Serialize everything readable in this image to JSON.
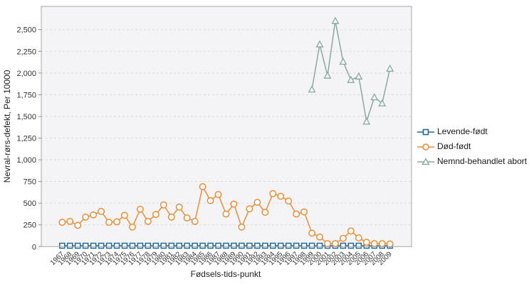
{
  "chart_data": {
    "type": "line",
    "title": "",
    "xlabel": "Fødsels-tids-punkt",
    "ylabel": "Nevral-rørs-defekt, Per 10000",
    "grid": "horizontal-dashed",
    "legend_position": "right",
    "ylim": [
      0,
      2767
    ],
    "y_ticks": [
      "0",
      "250",
      "500",
      "750",
      "1,000",
      "1,250",
      "1,500",
      "1,750",
      "2,000",
      "2,250",
      "2,500"
    ],
    "categories": [
      "1967",
      "1968",
      "1969",
      "1970",
      "1971",
      "1972",
      "1973",
      "1974",
      "1975",
      "1976",
      "1977",
      "1978",
      "1979",
      "1980",
      "1981",
      "1982",
      "1983",
      "1984",
      "1985",
      "1986",
      "1987",
      "1988",
      "1989",
      "1990",
      "1991",
      "1992",
      "1993",
      "1994",
      "1995",
      "1996",
      "1997",
      "1998",
      "1999",
      "2000",
      "2001",
      "2002",
      "2003",
      "2004",
      "2005",
      "2006",
      "2007",
      "2008",
      "2009"
    ],
    "series": [
      {
        "name": "Levende-født",
        "marker": "square",
        "color": "#1e68a0",
        "values": [
          10,
          10,
          10,
          10,
          10,
          10,
          10,
          10,
          10,
          10,
          10,
          10,
          10,
          10,
          10,
          10,
          10,
          10,
          10,
          10,
          10,
          10,
          10,
          10,
          10,
          10,
          10,
          10,
          10,
          10,
          10,
          10,
          10,
          10,
          10,
          10,
          10,
          10,
          10,
          10,
          10,
          10,
          10
        ]
      },
      {
        "name": "Død-født",
        "marker": "circle",
        "color": "#ef8c33",
        "values": [
          280,
          290,
          245,
          340,
          365,
          405,
          280,
          285,
          360,
          225,
          430,
          290,
          370,
          480,
          340,
          455,
          330,
          290,
          690,
          530,
          600,
          375,
          490,
          225,
          435,
          510,
          395,
          610,
          580,
          525,
          375,
          400,
          155,
          110,
          35,
          35,
          95,
          180,
          100,
          50,
          35,
          35,
          30
        ]
      },
      {
        "name": "Nemnd-behandlet abort",
        "marker": "triangle",
        "color": "#8aa8a2",
        "values": [
          null,
          null,
          null,
          null,
          null,
          null,
          null,
          null,
          null,
          null,
          null,
          null,
          null,
          null,
          null,
          null,
          null,
          null,
          null,
          null,
          null,
          null,
          null,
          null,
          null,
          null,
          null,
          null,
          null,
          null,
          null,
          null,
          1810,
          2330,
          1970,
          2600,
          2130,
          1920,
          1960,
          1440,
          1720,
          1650,
          2050
        ]
      }
    ],
    "colors": {
      "plot_background": "#f4f4f6",
      "plot_border": "#a8a8a8",
      "gridline": "#d9d9dc",
      "axis_text": "#333333"
    }
  }
}
